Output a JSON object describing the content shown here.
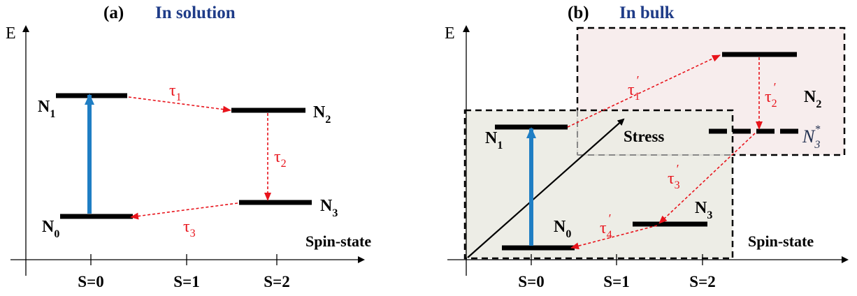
{
  "colors": {
    "level": "#000000",
    "excitation": "#1f7ec4",
    "relaxation": "#e8141c",
    "title_blue": "#1f3c88",
    "bulk_box_fill": "#ecebe4",
    "n2_box_fill": "#f7eded",
    "axis": "#000000"
  },
  "panel_a": {
    "label": "(a)",
    "title": "In solution",
    "y_axis_label": "E",
    "x_axis_label": "Spin-state",
    "ticks": [
      "S=0",
      "S=1",
      "S=2"
    ],
    "levels": {
      "n1": {
        "name": "N",
        "sub": "1"
      },
      "n2": {
        "name": "N",
        "sub": "2"
      },
      "n3": {
        "name": "N",
        "sub": "3"
      },
      "n0": {
        "name": "N",
        "sub": "0"
      }
    },
    "lifetimes": {
      "t1": {
        "sym": "τ",
        "sub": "1"
      },
      "t2": {
        "sym": "τ",
        "sub": "2"
      },
      "t3": {
        "sym": "τ",
        "sub": "3"
      }
    }
  },
  "panel_b": {
    "label": "(b)",
    "title": "In bulk",
    "y_axis_label": "E",
    "x_axis_label": "Spin-state",
    "ticks": [
      "S=0",
      "S=1",
      "S=2"
    ],
    "stress_label": "Stress",
    "levels": {
      "n1": {
        "name": "N",
        "sub": "1"
      },
      "n2": {
        "name": "N",
        "sub": "2"
      },
      "n3": {
        "name": "N",
        "sub": "3"
      },
      "n0": {
        "name": "N",
        "sub": "0"
      },
      "n3star": {
        "name": "N",
        "sub": "3",
        "sup": "*"
      }
    },
    "lifetimes": {
      "t1": {
        "sym": "τ",
        "sub": "1",
        "prime": "′"
      },
      "t2": {
        "sym": "τ",
        "sub": "2",
        "prime": "′"
      },
      "t3": {
        "sym": "τ",
        "sub": "3",
        "prime": "′"
      },
      "t4": {
        "sym": "τ",
        "sub": "4",
        "prime": "′"
      }
    }
  }
}
